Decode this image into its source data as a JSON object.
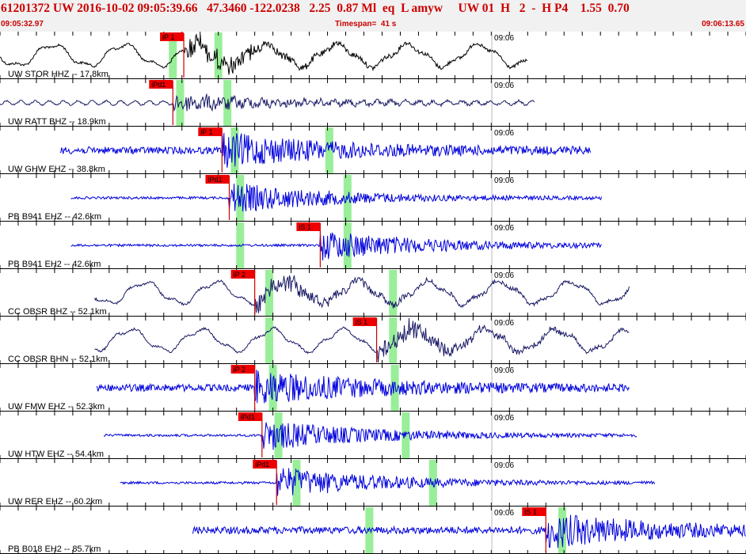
{
  "header": {
    "event_line": "61201372 UW 2016-10-02 09:05:39.66   47.3460 -122.0238   2.25  0.87 Ml  eq  L amyw     UW 01  H   2  -  H P4    1.55  0.70",
    "start_time": "09:05:32.97",
    "timespan": "Timespan=  41 s",
    "end_time": "09:06:13.65"
  },
  "colors": {
    "header_text": "#cc0000",
    "header_bg": "#f1f1f1",
    "trace_blue": "#0000dd",
    "trace_dark": "#1a1a66",
    "pick_flag": "#ee0000",
    "pick_line": "#cc0000",
    "theoretical_window": "#99ee99",
    "gridline": "#000000"
  },
  "chart_data": {
    "type": "line",
    "xlabel": "",
    "ylabel": "",
    "x_unit": "seconds after 09:05:32.97",
    "xlim": [
      0,
      41
    ],
    "minute_tick_label": "09:06",
    "minute_tick_s": 27.03,
    "vertical_gridlines": "every 1 s",
    "traces": [
      {
        "label": "UW STOR HHZ -- 17.8km",
        "color": "#000000",
        "style": "longperiod",
        "data_start_s": 0.0,
        "data_end_s": 29.0,
        "green_windows_s": [
          9.5,
          12.0
        ],
        "picks": [
          {
            "label": "iP 1",
            "time_s": 10.1,
            "color": "#ff0000"
          }
        ]
      },
      {
        "label": "UW RATT BHZ -- 18.9km",
        "color": "#1a1a66",
        "style": "dark",
        "data_start_s": 0.0,
        "data_end_s": 29.4,
        "green_windows_s": [
          9.9,
          12.5
        ],
        "picks": [
          {
            "label": "iPd1",
            "time_s": 9.5,
            "color": "#ff0000"
          }
        ]
      },
      {
        "label": "UW GHW EHZ -- 38.8km",
        "color": "#0000dd",
        "style": "noisy",
        "data_start_s": 3.3,
        "data_end_s": 32.5,
        "green_windows_s": [
          12.9,
          18.1
        ],
        "picks": [
          {
            "label": "iP 1",
            "time_s": 12.2,
            "color": "#ff0000"
          }
        ]
      },
      {
        "label": "PB B941 EHZ -- 42.6km",
        "color": "#0000dd",
        "style": "quiet",
        "data_start_s": 3.9,
        "data_end_s": 33.1,
        "green_windows_s": [
          13.2,
          19.1
        ],
        "picks": [
          {
            "label": "iPd1",
            "time_s": 12.6,
            "color": "#ff0000"
          }
        ]
      },
      {
        "label": "PB B941 EH2 -- 42.6km",
        "color": "#0000dd",
        "style": "quiet",
        "data_start_s": 3.9,
        "data_end_s": 33.1,
        "green_windows_s": [
          13.2,
          19.1
        ],
        "picks": [
          {
            "label": "iS 1",
            "time_s": 17.6,
            "color": "#ff0000"
          }
        ]
      },
      {
        "label": "CC OBSR BHZ -- 52.1km",
        "color": "#1a1a66",
        "style": "longperiod",
        "data_start_s": 5.2,
        "data_end_s": 34.6,
        "green_windows_s": [
          14.8,
          21.6
        ],
        "picks": [
          {
            "label": "iP 2",
            "time_s": 14.0,
            "color": "#ff0000"
          }
        ]
      },
      {
        "label": "CC OBSR BHN -- 52.1km",
        "color": "#1a1a66",
        "style": "longperiod",
        "data_start_s": 5.2,
        "data_end_s": 34.6,
        "green_windows_s": [
          14.8,
          21.6
        ],
        "picks": [
          {
            "label": "iS 1",
            "time_s": 20.7,
            "color": "#ff0000"
          }
        ]
      },
      {
        "label": "UW FMW EHZ -- 52.3km",
        "color": "#0000dd",
        "style": "noisy",
        "data_start_s": 5.3,
        "data_end_s": 34.6,
        "green_windows_s": [
          15.0,
          21.7
        ],
        "picks": [
          {
            "label": "iP 2",
            "time_s": 14.0,
            "color": "#ff0000"
          }
        ]
      },
      {
        "label": "UW HTW EHZ -- 54.4km",
        "color": "#0000dd",
        "style": "quiet",
        "data_start_s": 5.7,
        "data_end_s": 35.0,
        "green_windows_s": [
          15.3,
          22.3
        ],
        "picks": [
          {
            "label": "iPd1",
            "time_s": 14.4,
            "color": "#ff0000"
          }
        ]
      },
      {
        "label": "UW RER EHZ -- 60.2km",
        "color": "#0000dd",
        "style": "quiet",
        "data_start_s": 6.6,
        "data_end_s": 36.0,
        "green_windows_s": [
          16.3,
          23.8
        ],
        "picks": [
          {
            "label": "iPd1",
            "time_s": 15.2,
            "color": "#ff0000"
          }
        ]
      },
      {
        "label": "PB B018 EH2 -- 85.7km",
        "color": "#0000dd",
        "style": "noisy",
        "data_start_s": 10.6,
        "data_end_s": 41.0,
        "green_windows_s": [
          20.3,
          30.9
        ],
        "picks": [
          {
            "label": "iS 1",
            "time_s": 30.0,
            "color": "#ff0000"
          }
        ]
      }
    ]
  }
}
